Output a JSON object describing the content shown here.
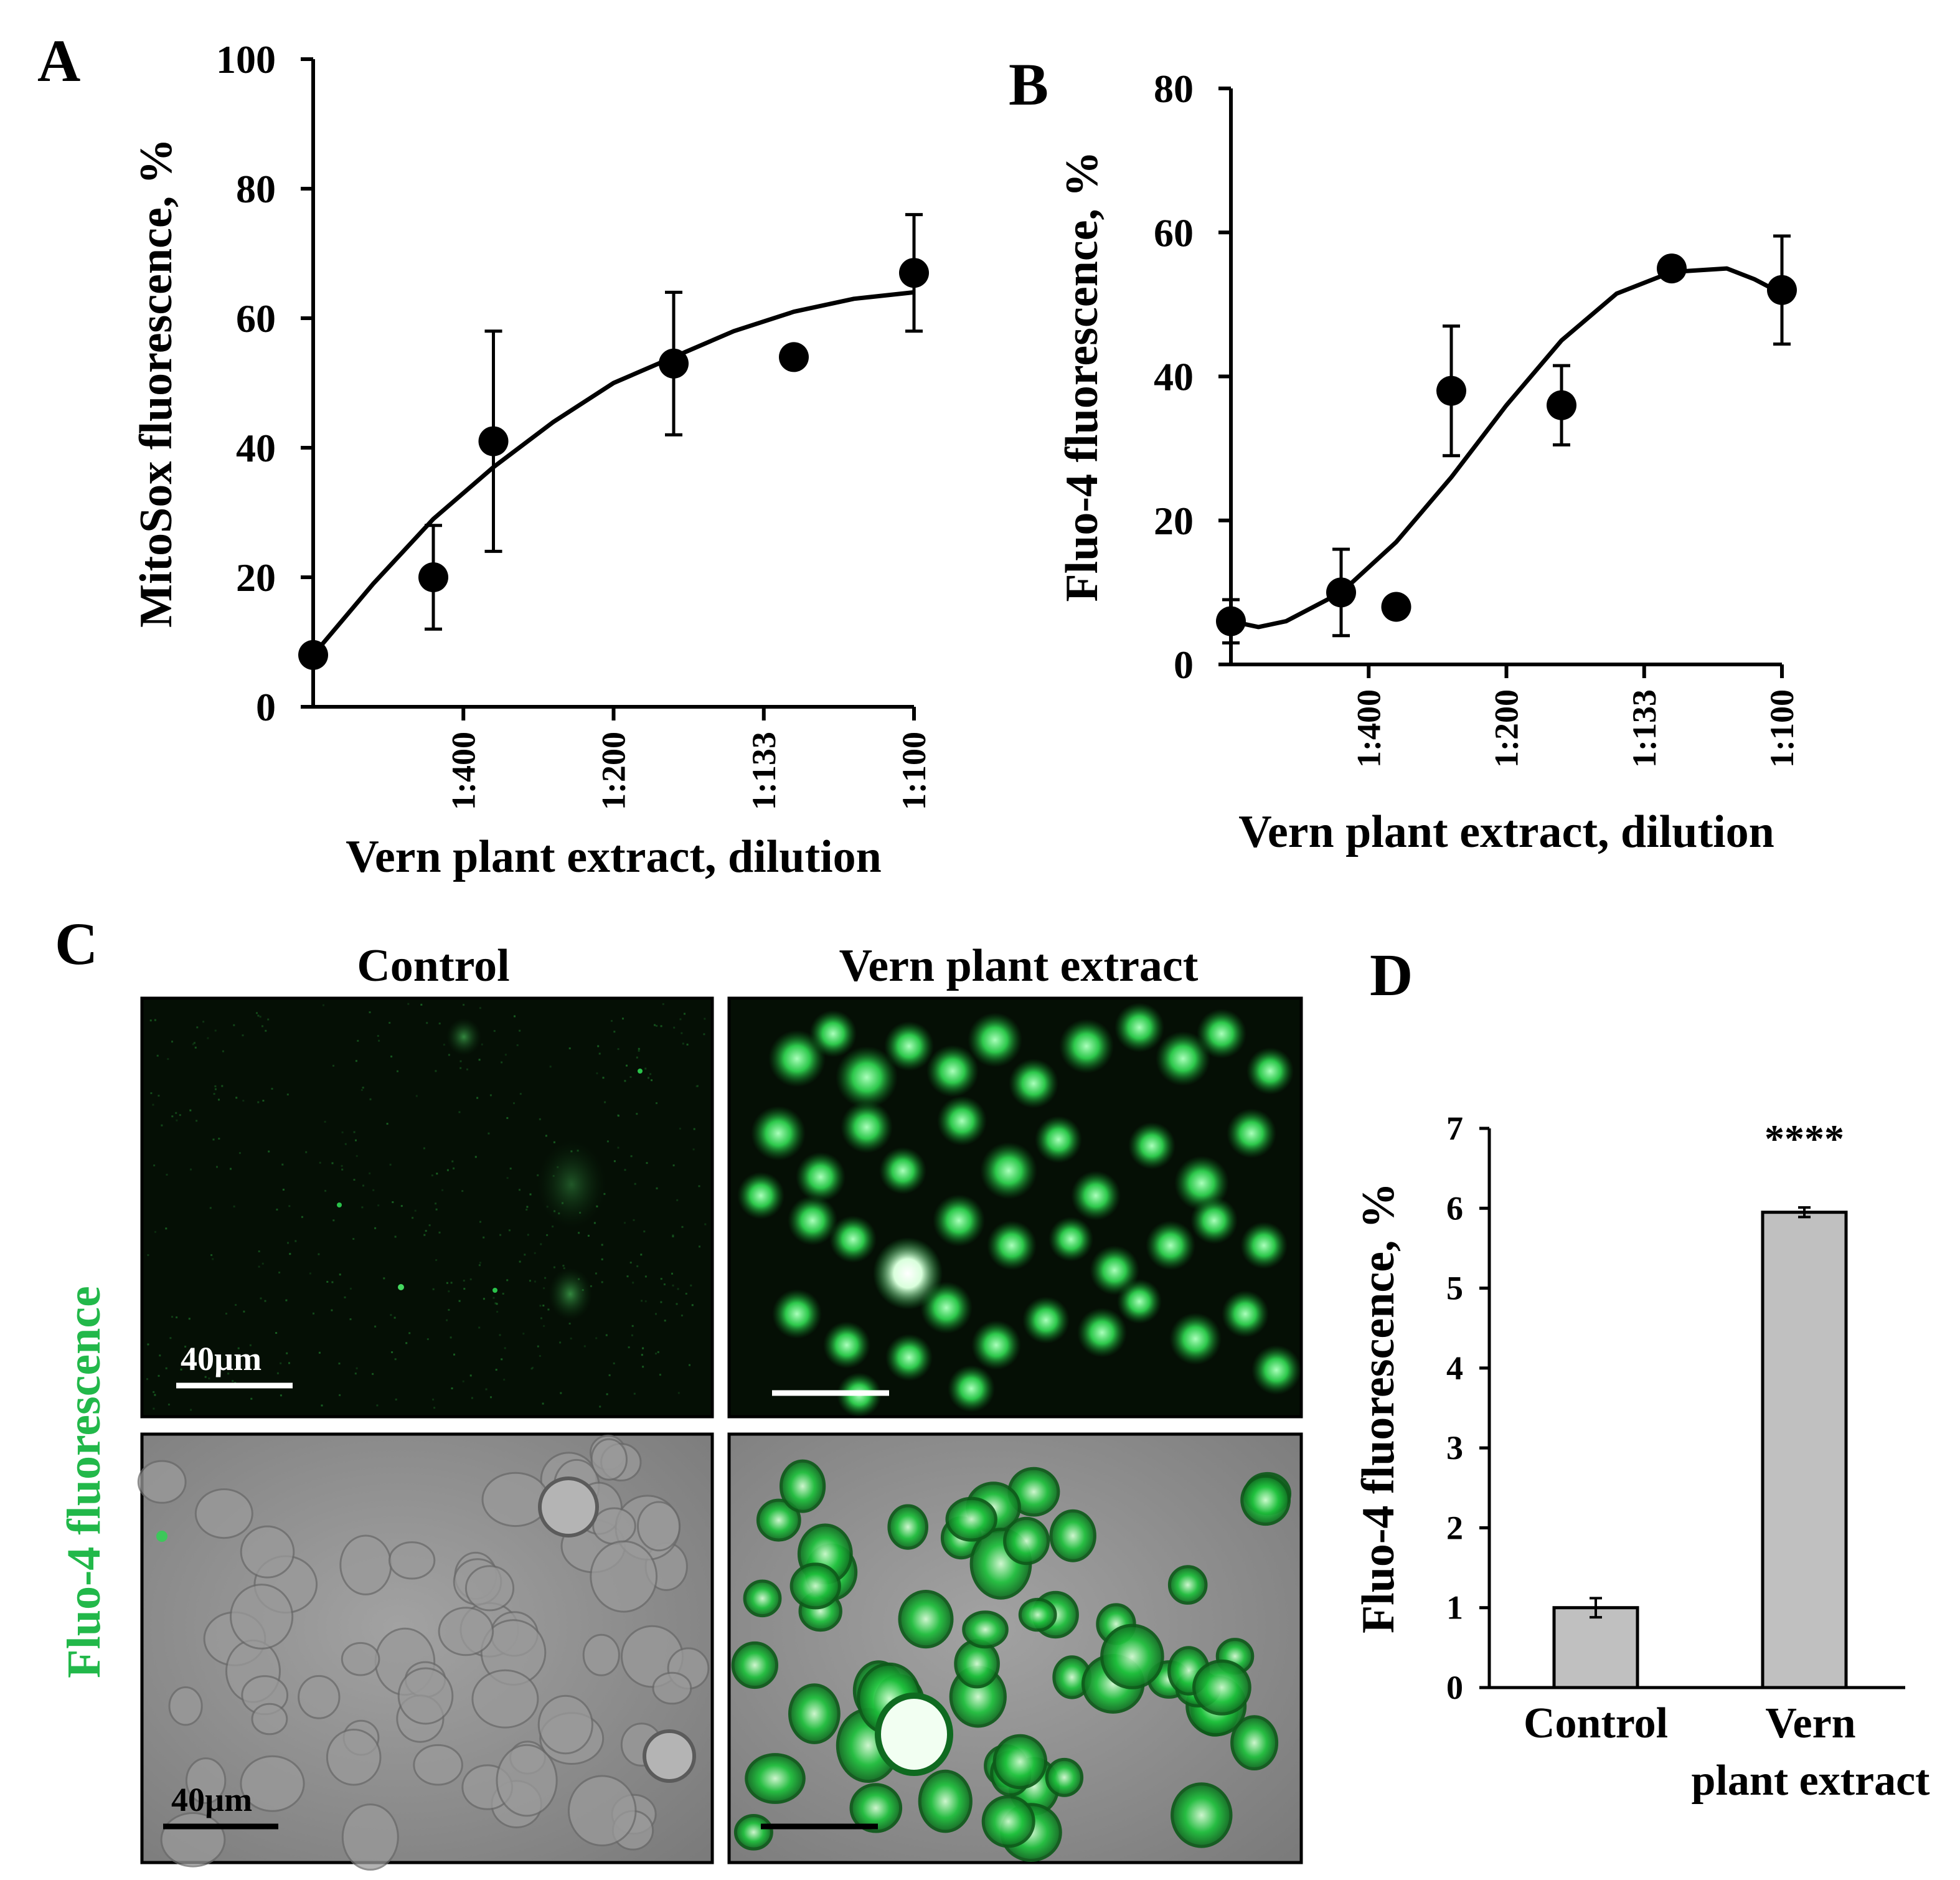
{
  "panel_labels": {
    "a": "A",
    "b": "B",
    "c": "C",
    "d": "D"
  },
  "colors": {
    "ink": "#000000",
    "fluo_green": "#22b84a",
    "bar_fill": "#c0c0c0",
    "micro_dark": "#050f05",
    "micro_gray": "#8e8e8e"
  },
  "panel_c": {
    "col_control": "Control",
    "col_extract": "Vern plant extract",
    "side_label": "Fluo-4 fluorescence",
    "scale_text_top": "40µm",
    "scale_text_bottom": "40µm"
  },
  "chart_data": [
    {
      "id": "A",
      "type": "scatter",
      "xlabel": "Vern plant extract, dilution",
      "ylabel": "MitoSox fluorescence, %",
      "x_range": [
        0,
        1
      ],
      "x_ticks": [
        {
          "pos": 0.25,
          "label": "1:400"
        },
        {
          "pos": 0.5,
          "label": "1:200"
        },
        {
          "pos": 0.75,
          "label": "1:133"
        },
        {
          "pos": 1.0,
          "label": "1:100"
        }
      ],
      "ylim": [
        0,
        100
      ],
      "yticks": [
        0,
        20,
        40,
        60,
        80,
        100
      ],
      "points": [
        {
          "x": 0.0,
          "y": 8,
          "err": null
        },
        {
          "x": 0.2,
          "y": 20,
          "err": 8
        },
        {
          "x": 0.3,
          "y": 41,
          "err": 17
        },
        {
          "x": 0.6,
          "y": 53,
          "err": 11
        },
        {
          "x": 0.8,
          "y": 54,
          "err": null
        },
        {
          "x": 1.0,
          "y": 67,
          "err": 9
        }
      ],
      "fit_curve": [
        [
          0,
          8
        ],
        [
          0.1,
          19
        ],
        [
          0.2,
          29
        ],
        [
          0.3,
          37
        ],
        [
          0.4,
          44
        ],
        [
          0.5,
          50
        ],
        [
          0.6,
          54
        ],
        [
          0.7,
          58
        ],
        [
          0.8,
          61
        ],
        [
          0.9,
          63
        ],
        [
          1.0,
          64
        ]
      ]
    },
    {
      "id": "B",
      "type": "scatter",
      "xlabel": "Vern plant extract, dilution",
      "ylabel": "Fluo-4 fluorescence, %",
      "x_range": [
        0,
        1
      ],
      "x_ticks": [
        {
          "pos": 0.25,
          "label": "1:400"
        },
        {
          "pos": 0.5,
          "label": "1:200"
        },
        {
          "pos": 0.75,
          "label": "1:133"
        },
        {
          "pos": 1.0,
          "label": "1:100"
        }
      ],
      "ylim": [
        0,
        80
      ],
      "yticks": [
        0,
        20,
        40,
        60,
        80
      ],
      "points": [
        {
          "x": 0.0,
          "y": 6,
          "err": 3
        },
        {
          "x": 0.2,
          "y": 10,
          "err": 6
        },
        {
          "x": 0.3,
          "y": 8,
          "err": null
        },
        {
          "x": 0.4,
          "y": 38,
          "err": 9
        },
        {
          "x": 0.6,
          "y": 36,
          "err": 5.5
        },
        {
          "x": 0.8,
          "y": 55,
          "err": null
        },
        {
          "x": 1.0,
          "y": 52,
          "err": 7.5
        }
      ],
      "fit_curve": [
        [
          0,
          6
        ],
        [
          0.05,
          5.2
        ],
        [
          0.1,
          6
        ],
        [
          0.2,
          10
        ],
        [
          0.3,
          17
        ],
        [
          0.4,
          26
        ],
        [
          0.5,
          36
        ],
        [
          0.6,
          45
        ],
        [
          0.7,
          51.5
        ],
        [
          0.8,
          54.5
        ],
        [
          0.9,
          55
        ],
        [
          0.95,
          53.5
        ],
        [
          1.0,
          51.5
        ]
      ]
    },
    {
      "id": "D",
      "type": "bar",
      "ylabel": "Fluo-4 fluorescence, %",
      "ylim": [
        0,
        7
      ],
      "yticks": [
        0,
        1,
        2,
        3,
        4,
        5,
        6,
        7
      ],
      "categories": [
        [
          "Control"
        ],
        [
          "Vern",
          "plant extract"
        ]
      ],
      "values": [
        1.0,
        5.95
      ],
      "errors": [
        0.12,
        0.06
      ],
      "annotation": "****"
    }
  ]
}
